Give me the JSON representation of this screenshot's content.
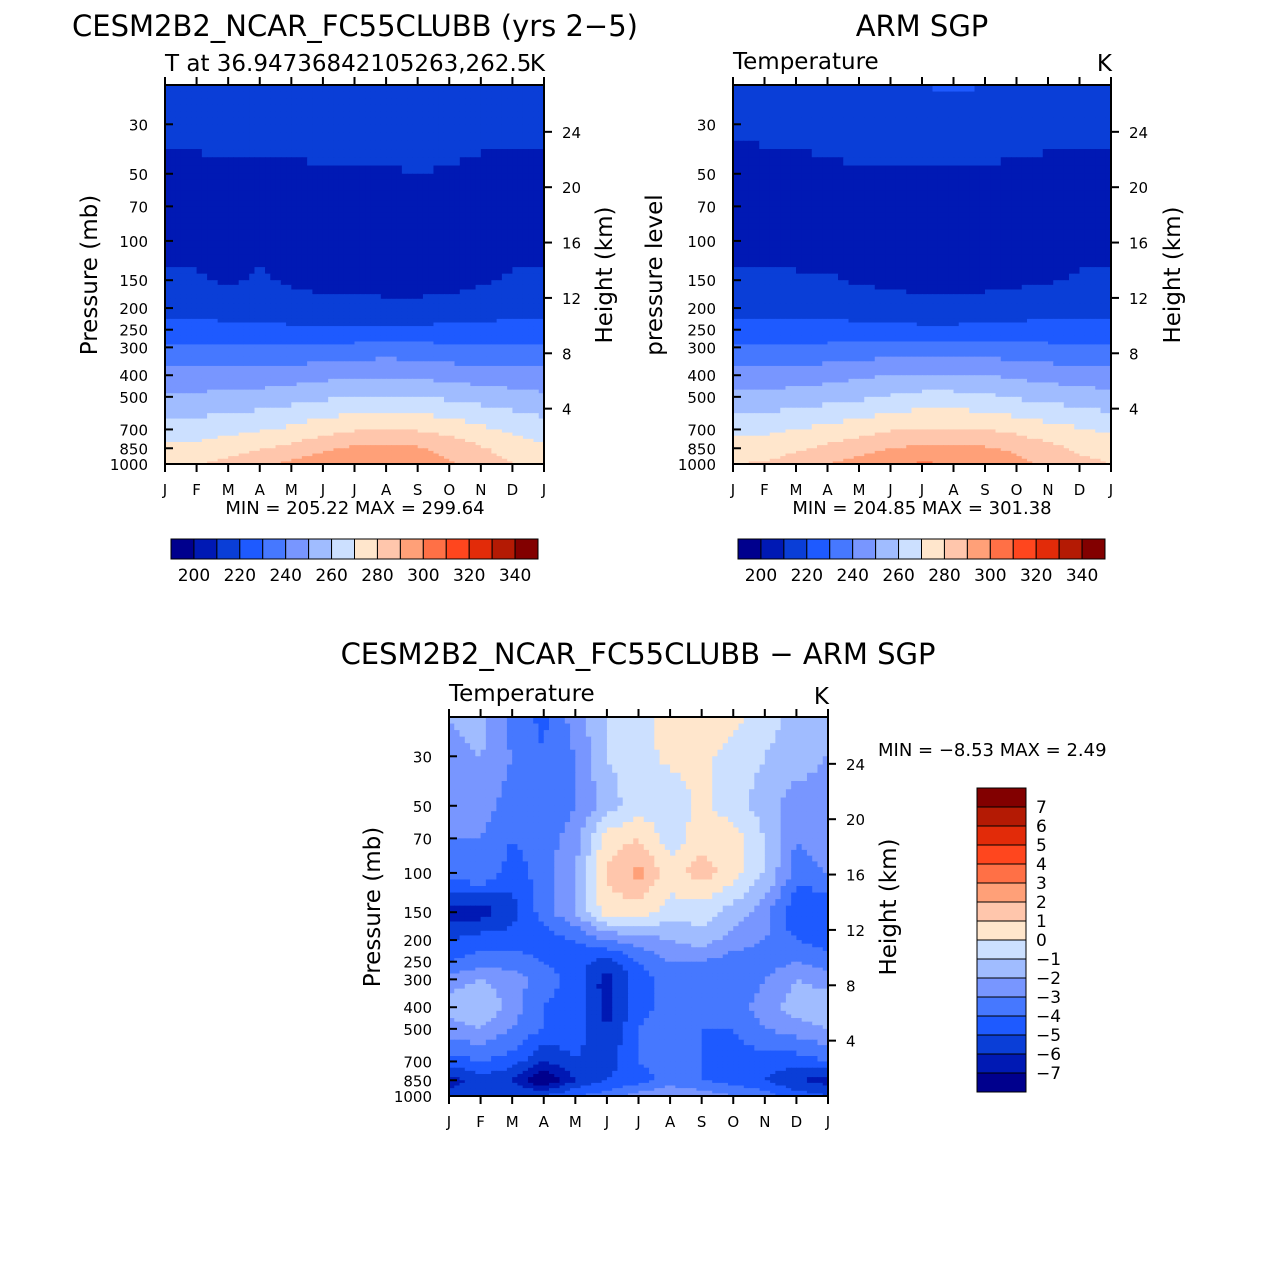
{
  "chart_data": [
    {
      "id": "model",
      "type": "heatmap",
      "title": "CESM2B2_NCAR_FC55CLUBB (yrs 2−5)",
      "subtitle_left": "T at 36.94736842105263,262.5",
      "subtitle_right": "K",
      "ylabel_left": "Pressure (mb)",
      "ylabel_right": "Height (km)",
      "x_categories": [
        "J",
        "F",
        "M",
        "A",
        "M",
        "J",
        "J",
        "A",
        "S",
        "O",
        "N",
        "D",
        "J"
      ],
      "y_pressure_ticks": [
        30,
        50,
        70,
        100,
        150,
        200,
        250,
        300,
        400,
        500,
        700,
        850,
        1000
      ],
      "y_height_ticks": [
        4,
        8,
        12,
        16,
        20,
        24
      ],
      "ylim_mb": [
        20,
        1000
      ],
      "stats": {
        "min_label": "MIN",
        "min": "205.22",
        "max_label": "MAX",
        "max": "299.64"
      },
      "colorbar": {
        "ticks": [
          200,
          220,
          240,
          260,
          280,
          300,
          320,
          340
        ],
        "levels": [
          190,
          200,
          210,
          220,
          230,
          240,
          250,
          260,
          270,
          280,
          290,
          300,
          310,
          320,
          330,
          340,
          350
        ]
      },
      "rows": [
        {
          "p": 20,
          "v": [
            218,
            218,
            218,
            218,
            218,
            219,
            220,
            220,
            220,
            219,
            218,
            218,
            218
          ]
        },
        {
          "p": 30,
          "v": [
            214,
            214,
            214,
            214,
            214,
            215,
            215,
            215,
            215,
            215,
            214,
            214,
            214
          ]
        },
        {
          "p": 50,
          "v": [
            207,
            207,
            208,
            208,
            208,
            209,
            209,
            209,
            210,
            209,
            207,
            207,
            207
          ]
        },
        {
          "p": 70,
          "v": [
            206,
            206,
            207,
            207,
            207,
            207,
            207,
            207,
            207,
            207,
            206,
            206,
            206
          ]
        },
        {
          "p": 100,
          "v": [
            207,
            207,
            207,
            208,
            207,
            207,
            207,
            207,
            207,
            207,
            207,
            207,
            207
          ]
        },
        {
          "p": 150,
          "v": [
            212,
            211,
            209,
            211,
            209,
            208,
            208,
            207,
            207,
            207,
            209,
            211,
            212
          ]
        },
        {
          "p": 200,
          "v": [
            217,
            216,
            215,
            214,
            213,
            212,
            212,
            212,
            212,
            213,
            214,
            216,
            217
          ]
        },
        {
          "p": 250,
          "v": [
            224,
            224,
            223,
            223,
            222,
            221,
            221,
            221,
            222,
            223,
            223,
            224,
            224
          ]
        },
        {
          "p": 300,
          "v": [
            231,
            231,
            231,
            231,
            231,
            232,
            233,
            234,
            233,
            232,
            231,
            231,
            231
          ]
        },
        {
          "p": 400,
          "v": [
            243,
            243,
            243,
            244,
            245,
            247,
            248,
            249,
            248,
            246,
            245,
            244,
            243
          ]
        },
        {
          "p": 500,
          "v": [
            252,
            252,
            253,
            254,
            256,
            258,
            260,
            261,
            260,
            258,
            256,
            254,
            252
          ]
        },
        {
          "p": 700,
          "v": [
            265,
            265,
            267,
            269,
            272,
            276,
            279,
            280,
            279,
            276,
            272,
            268,
            265
          ]
        },
        {
          "p": 850,
          "v": [
            272,
            273,
            276,
            279,
            283,
            288,
            292,
            293,
            291,
            287,
            281,
            276,
            272
          ]
        },
        {
          "p": 1000,
          "v": [
            278,
            279,
            283,
            287,
            292,
            296,
            299,
            299,
            296,
            291,
            285,
            280,
            278
          ]
        }
      ]
    },
    {
      "id": "obs",
      "type": "heatmap",
      "title": "ARM SGP",
      "subtitle_left": "Temperature",
      "subtitle_right": "K",
      "ylabel_left": "pressure level",
      "ylabel_right": "Height (km)",
      "x_categories": [
        "J",
        "F",
        "M",
        "A",
        "M",
        "J",
        "J",
        "A",
        "S",
        "O",
        "N",
        "D",
        "J"
      ],
      "y_pressure_ticks": [
        30,
        50,
        70,
        100,
        150,
        200,
        250,
        300,
        400,
        500,
        700,
        850,
        1000
      ],
      "y_height_ticks": [
        4,
        8,
        12,
        16,
        20,
        24
      ],
      "ylim_mb": [
        20,
        1000
      ],
      "stats": {
        "min_label": "MIN",
        "min": "204.85",
        "max_label": "MAX",
        "max": "301.38"
      },
      "colorbar": {
        "ticks": [
          200,
          220,
          240,
          260,
          280,
          300,
          320,
          340
        ],
        "levels": [
          190,
          200,
          210,
          220,
          230,
          240,
          250,
          260,
          270,
          280,
          290,
          300,
          310,
          320,
          330,
          340,
          350
        ]
      },
      "rows": [
        {
          "p": 20,
          "v": [
            217,
            217,
            217,
            217,
            218,
            219,
            220,
            221,
            220,
            219,
            218,
            217,
            217
          ]
        },
        {
          "p": 30,
          "v": [
            213,
            213,
            213,
            214,
            215,
            216,
            217,
            216,
            215,
            214,
            214,
            213,
            213
          ]
        },
        {
          "p": 50,
          "v": [
            205,
            206,
            207,
            208,
            209,
            209,
            209,
            209,
            209,
            208,
            207,
            207,
            206
          ]
        },
        {
          "p": 70,
          "v": [
            205,
            206,
            208,
            207,
            207,
            207,
            206,
            206,
            206,
            206,
            206,
            207,
            205
          ]
        },
        {
          "p": 100,
          "v": [
            207,
            207,
            207,
            206,
            206,
            206,
            205,
            205,
            205,
            206,
            206,
            207,
            207
          ]
        },
        {
          "p": 150,
          "v": [
            212,
            212,
            211,
            211,
            209,
            208,
            207,
            207,
            207,
            208,
            209,
            211,
            212
          ]
        },
        {
          "p": 200,
          "v": [
            217,
            217,
            216,
            216,
            215,
            214,
            213,
            213,
            214,
            215,
            216,
            217,
            217
          ]
        },
        {
          "p": 250,
          "v": [
            224,
            224,
            224,
            224,
            223,
            223,
            222,
            222,
            223,
            223,
            224,
            224,
            224
          ]
        },
        {
          "p": 300,
          "v": [
            231,
            231,
            231,
            232,
            233,
            234,
            235,
            235,
            234,
            233,
            232,
            231,
            231
          ]
        },
        {
          "p": 400,
          "v": [
            244,
            244,
            245,
            246,
            248,
            250,
            251,
            251,
            250,
            248,
            246,
            245,
            244
          ]
        },
        {
          "p": 500,
          "v": [
            253,
            253,
            254,
            256,
            258,
            261,
            263,
            263,
            262,
            259,
            257,
            255,
            253
          ]
        },
        {
          "p": 700,
          "v": [
            268,
            268,
            270,
            273,
            276,
            279,
            281,
            281,
            280,
            277,
            274,
            271,
            268
          ]
        },
        {
          "p": 850,
          "v": [
            275,
            275,
            278,
            282,
            286,
            290,
            292,
            293,
            291,
            288,
            283,
            278,
            275
          ]
        },
        {
          "p": 1000,
          "v": [
            280,
            281,
            285,
            290,
            294,
            298,
            301,
            300,
            297,
            293,
            287,
            283,
            280
          ]
        }
      ]
    },
    {
      "id": "diff",
      "type": "heatmap",
      "title": "CESM2B2_NCAR_FC55CLUBB − ARM SGP",
      "subtitle_left": "Temperature",
      "subtitle_right": "K",
      "ylabel_left": "Pressure (mb)",
      "ylabel_right": "Height (km)",
      "x_categories": [
        "J",
        "F",
        "M",
        "A",
        "M",
        "J",
        "J",
        "A",
        "S",
        "O",
        "N",
        "D",
        "J"
      ],
      "y_pressure_ticks": [
        30,
        50,
        70,
        100,
        150,
        200,
        250,
        300,
        400,
        500,
        700,
        850,
        1000
      ],
      "y_height_ticks": [
        4,
        8,
        12,
        16,
        20,
        24
      ],
      "ylim_mb": [
        20,
        1000
      ],
      "stats": {
        "min_label": "MIN =",
        "min": "−8.53",
        "max_label": "MAX =",
        "max": "2.49"
      },
      "colorbar": {
        "ticks": [
          7,
          6,
          5,
          4,
          3,
          2,
          1,
          0,
          -1,
          -2,
          -3,
          -4,
          -5,
          -6,
          -7
        ],
        "tick_labels": [
          "7",
          "6",
          "5",
          "4",
          "3",
          "2",
          "1",
          "0",
          "−1",
          "−2",
          "−3",
          "−4",
          "−5",
          "−6",
          "−7"
        ],
        "levels": [
          -8,
          -7,
          -6,
          -5,
          -4,
          -3,
          -2,
          -1,
          0,
          1,
          2,
          3,
          4,
          5,
          6,
          7,
          8
        ]
      },
      "rows": [
        {
          "p": 20,
          "v": [
            -2.0,
            -1.5,
            -3.5,
            -4.2,
            -2.5,
            -1.0,
            -0.5,
            0.5,
            0.8,
            0.3,
            -0.5,
            -1.5,
            -2.0
          ]
        },
        {
          "p": 30,
          "v": [
            -2.5,
            -2.0,
            -3.0,
            -4.0,
            -3.0,
            -1.0,
            -0.3,
            0.2,
            0.3,
            -0.5,
            -1.0,
            -1.5,
            -2.0
          ]
        },
        {
          "p": 50,
          "v": [
            -3.0,
            -2.5,
            -3.5,
            -4.0,
            -3.0,
            -1.5,
            -0.5,
            -0.5,
            0.2,
            -0.5,
            -1.5,
            -2.5,
            -2.5
          ]
        },
        {
          "p": 70,
          "v": [
            -3.0,
            -3.0,
            -4.0,
            -3.5,
            -2.5,
            0.5,
            1.0,
            -0.5,
            0.5,
            0.5,
            -1.0,
            -3.0,
            -2.5
          ]
        },
        {
          "p": 100,
          "v": [
            -3.5,
            -3.0,
            -4.5,
            -3.5,
            -2.0,
            1.2,
            2.3,
            0.5,
            1.5,
            0.5,
            -1.0,
            -3.5,
            -3.0
          ]
        },
        {
          "p": 150,
          "v": [
            -6.5,
            -6.5,
            -5.5,
            -3.5,
            -2.0,
            0.5,
            0.5,
            -0.5,
            -0.5,
            -1.5,
            -2.5,
            -5.0,
            -5.0
          ]
        },
        {
          "p": 200,
          "v": [
            -5.0,
            -4.5,
            -4.5,
            -4.5,
            -4.0,
            -3.0,
            -2.5,
            -2.0,
            -1.5,
            -2.5,
            -3.0,
            -4.0,
            -4.5
          ]
        },
        {
          "p": 250,
          "v": [
            -4.0,
            -3.5,
            -3.5,
            -4.0,
            -4.5,
            -5.5,
            -4.0,
            -3.0,
            -3.0,
            -3.5,
            -3.5,
            -3.0,
            -3.5
          ]
        },
        {
          "p": 300,
          "v": [
            -2.5,
            -2.0,
            -2.5,
            -3.5,
            -4.5,
            -6.5,
            -4.5,
            -3.5,
            -4.0,
            -4.0,
            -3.0,
            -2.0,
            -2.5
          ]
        },
        {
          "p": 400,
          "v": [
            -1.5,
            -1.0,
            -2.5,
            -4.0,
            -4.5,
            -6.5,
            -4.5,
            -3.5,
            -4.0,
            -3.5,
            -2.5,
            -1.5,
            -1.0
          ]
        },
        {
          "p": 500,
          "v": [
            -2.5,
            -2.0,
            -3.0,
            -4.0,
            -4.5,
            -6.0,
            -4.0,
            -3.0,
            -4.0,
            -4.0,
            -3.0,
            -2.5,
            -2.0
          ]
        },
        {
          "p": 700,
          "v": [
            -4.5,
            -4.0,
            -4.5,
            -6.0,
            -5.0,
            -5.5,
            -4.0,
            -3.5,
            -4.0,
            -4.5,
            -4.5,
            -4.5,
            -4.0
          ]
        },
        {
          "p": 850,
          "v": [
            -6.5,
            -5.5,
            -6.0,
            -8.3,
            -6.0,
            -5.0,
            -4.5,
            -3.5,
            -4.0,
            -4.5,
            -5.0,
            -6.0,
            -6.5
          ]
        },
        {
          "p": 1000,
          "v": [
            -5.5,
            -5.0,
            -5.0,
            -5.0,
            -4.0,
            -3.5,
            -2.5,
            -2.0,
            -2.5,
            -3.0,
            -3.5,
            -4.5,
            -5.0
          ]
        }
      ]
    }
  ],
  "colors": {
    "temperature": [
      "#00008d",
      "#0019b4",
      "#0a3ed7",
      "#1e5aff",
      "#4678ff",
      "#7896ff",
      "#a0bcff",
      "#cce0ff",
      "#ffe6cc",
      "#ffc6ac",
      "#ffa078",
      "#ff7046",
      "#ff461e",
      "#e22b09",
      "#b41a04",
      "#820000"
    ],
    "difference": [
      "#00008d",
      "#0019b4",
      "#0a3ed7",
      "#1e5aff",
      "#4678ff",
      "#7896ff",
      "#a0bcff",
      "#cce0ff",
      "#ffe6cc",
      "#ffc6ac",
      "#ffa078",
      "#ff7046",
      "#ff461e",
      "#e22b09",
      "#b41a04",
      "#820000"
    ]
  }
}
